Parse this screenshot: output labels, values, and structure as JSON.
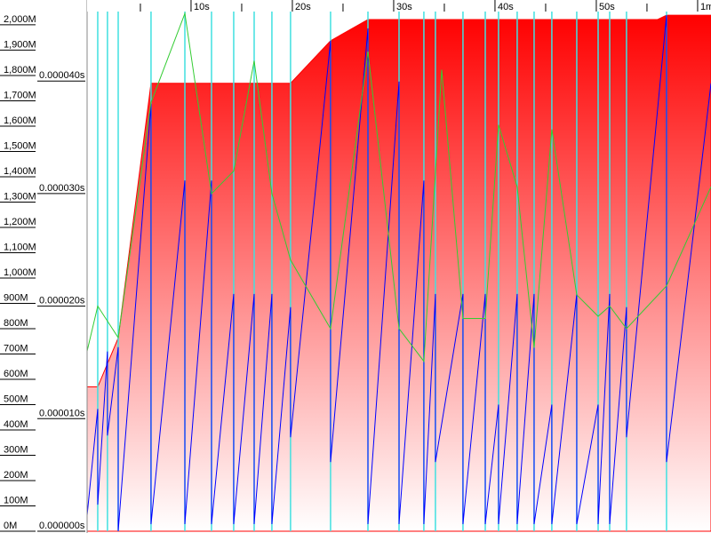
{
  "chart_data": {
    "type": "line",
    "xlim": [
      -0.26,
      61.32
    ],
    "ylim": [
      0,
      2098
    ],
    "y2lim": [
      0,
      4.72e-05
    ],
    "xticks": [
      {
        "value": 10,
        "label": "10s"
      },
      {
        "value": 20,
        "label": "20s"
      },
      {
        "value": 30,
        "label": "30s"
      },
      {
        "value": 40,
        "label": "40s"
      },
      {
        "value": 50,
        "label": "50s"
      },
      {
        "value": 60,
        "label": "1m"
      }
    ],
    "xminor_ticks": [
      5,
      15,
      25,
      35,
      45,
      55
    ],
    "yticks": [
      {
        "value": 0,
        "label": "0M"
      },
      {
        "value": 100,
        "label": "100M"
      },
      {
        "value": 200,
        "label": "200M"
      },
      {
        "value": 300,
        "label": "300M"
      },
      {
        "value": 400,
        "label": "400M"
      },
      {
        "value": 500,
        "label": "500M"
      },
      {
        "value": 600,
        "label": "600M"
      },
      {
        "value": 700,
        "label": "700M"
      },
      {
        "value": 800,
        "label": "800M"
      },
      {
        "value": 900,
        "label": "900M"
      },
      {
        "value": 1000,
        "label": "1,000M"
      },
      {
        "value": 1100,
        "label": "1,100M"
      },
      {
        "value": 1200,
        "label": "1,200M"
      },
      {
        "value": 1300,
        "label": "1,300M"
      },
      {
        "value": 1400,
        "label": "1,400M"
      },
      {
        "value": 1500,
        "label": "1,500M"
      },
      {
        "value": 1600,
        "label": "1,600M"
      },
      {
        "value": 1700,
        "label": "1,700M"
      },
      {
        "value": 1800,
        "label": "1,800M"
      },
      {
        "value": 1900,
        "label": "1,900M"
      },
      {
        "value": 2000,
        "label": "2,000M"
      }
    ],
    "y2ticks": [
      {
        "value": 0,
        "label": "0.000000s"
      },
      {
        "value": 1e-05,
        "label": "0.000010s"
      },
      {
        "value": 2e-05,
        "label": "0.000020s"
      },
      {
        "value": 3e-05,
        "label": "0.000030s"
      },
      {
        "value": 4e-05,
        "label": "0.000040s"
      }
    ],
    "gc_times": [
      0.79,
      1.75,
      2.81,
      6.05,
      9.39,
      12.02,
      14.21,
      16.23,
      17.98,
      19.82,
      23.77,
      27.46,
      30.53,
      32.98,
      34.12,
      36.84,
      39.04,
      40.35,
      42.19,
      43.86,
      45.61,
      48.07,
      50.18,
      51.32,
      52.98,
      56.93
    ],
    "gc_color": "#40e0e0",
    "series": [
      {
        "area": true,
        "color": "#ff0000",
        "x": [
          -0.26,
          0.79,
          2.81,
          6.05,
          19.82,
          23.77,
          27.46,
          56.05,
          56.93,
          61.32
        ],
        "values": [
          570,
          570,
          763,
          1769,
          1769,
          1937,
          2021,
          2021,
          2038,
          2038
        ]
      },
      {
        "color": "#0000ff",
        "x": [
          -0.26,
          0.79,
          0.79,
          1.75,
          1.75,
          2.81,
          2.81,
          6.05,
          6.05,
          9.39,
          9.39,
          12.02,
          12.02,
          14.21,
          14.21,
          16.23,
          16.23,
          17.98,
          17.98,
          19.82,
          19.82,
          23.77,
          23.77,
          27.46,
          27.46,
          30.53,
          30.53,
          32.98,
          32.98,
          34.12,
          34.12,
          36.84,
          36.84,
          39.04,
          39.04,
          40.35,
          40.35,
          42.19,
          42.19,
          43.86,
          43.86,
          45.61,
          45.61,
          48.07,
          48.07,
          50.18,
          50.18,
          51.32,
          51.32,
          52.98,
          52.98,
          56.93,
          56.93,
          61.32
        ],
        "values": [
          63,
          483,
          105,
          710,
          378,
          727,
          0,
          1689,
          28,
          1385,
          28,
          1385,
          28,
          937,
          28,
          937,
          28,
          937,
          28,
          885,
          371,
          1937,
          273,
          1986,
          28,
          1776,
          28,
          1385,
          28,
          937,
          273,
          937,
          28,
          937,
          28,
          500,
          28,
          937,
          28,
          937,
          28,
          500,
          28,
          937,
          28,
          500,
          28,
          937,
          28,
          885,
          371,
          2038,
          273,
          1769
        ]
      },
      {
        "color": "#33cc33",
        "axis": "y2",
        "x": [
          -0.26,
          0.79,
          2.81,
          6.05,
          9.39,
          12.02,
          14.21,
          16.23,
          17.98,
          19.82,
          23.77,
          27.46,
          30.53,
          32.98,
          34.74,
          36.84,
          39.04,
          40.35,
          42.19,
          43.86,
          45.61,
          48.07,
          50.18,
          51.32,
          52.98,
          56.93,
          61.32
        ],
        "values": [
          1.6e-05,
          2e-05,
          1.72e-05,
          3.81e-05,
          4.6e-05,
          3e-05,
          3.2e-05,
          4.18e-05,
          3e-05,
          2.41e-05,
          1.8e-05,
          4.26e-05,
          1.8e-05,
          1.51e-05,
          4.1e-05,
          1.89e-05,
          1.89e-05,
          3.61e-05,
          3.06e-05,
          1.63e-05,
          3.57e-05,
          2.1e-05,
          1.91e-05,
          2e-05,
          1.8e-05,
          2.18e-05,
          3.06e-05
        ]
      }
    ]
  }
}
